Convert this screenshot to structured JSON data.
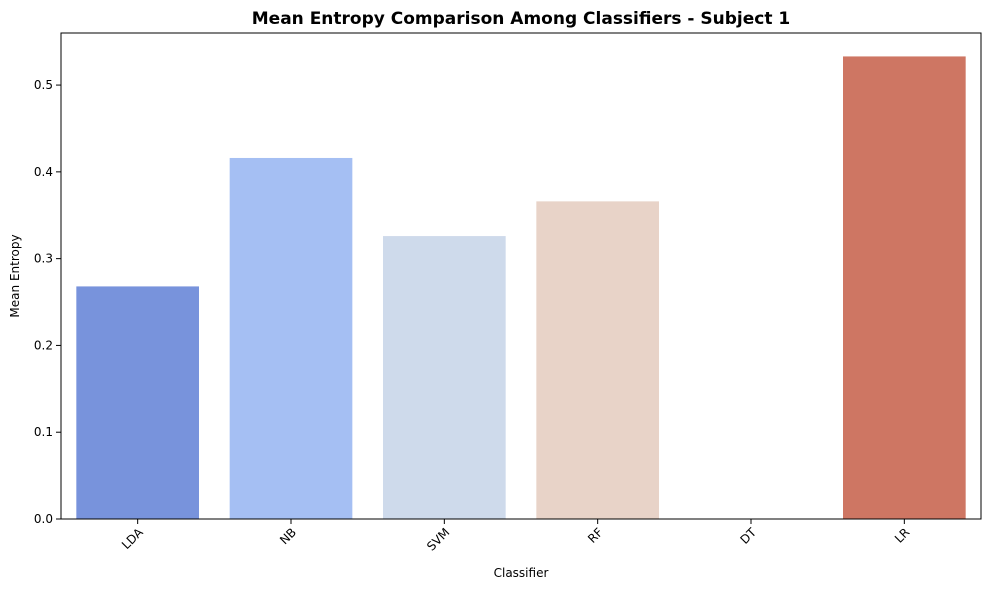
{
  "chart_data": {
    "type": "bar",
    "title": "Mean Entropy Comparison Among Classifiers - Subject 1",
    "xlabel": "Classifier",
    "ylabel": "Mean Entropy",
    "categories": [
      "LDA",
      "NB",
      "SVM",
      "RF",
      "DT",
      "LR"
    ],
    "values": [
      0.268,
      0.416,
      0.326,
      0.366,
      0.0,
      0.533
    ],
    "colors": [
      "#7893dc",
      "#a5bff3",
      "#cedaeb",
      "#e8d3c8",
      "#e8d3c8",
      "#ce7663"
    ],
    "ylim": [
      0,
      0.56
    ],
    "yticks": [
      "0.0",
      "0.1",
      "0.2",
      "0.3",
      "0.4",
      "0.5"
    ],
    "ytick_values": [
      0,
      0.1,
      0.2,
      0.3,
      0.4,
      0.5
    ],
    "grid": false,
    "legend": "none"
  }
}
